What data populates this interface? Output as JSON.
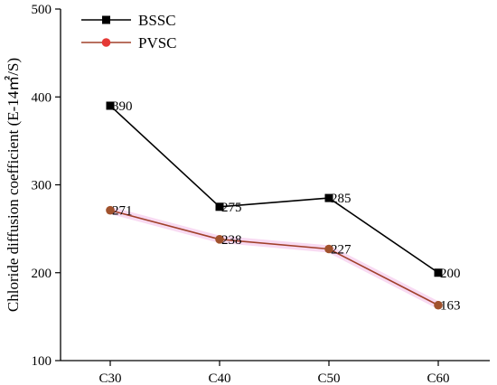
{
  "chart_data": {
    "type": "line",
    "categories": [
      "C30",
      "C40",
      "C50",
      "C60"
    ],
    "ylim": [
      100,
      500
    ],
    "yticks": [
      100,
      200,
      300,
      400,
      500
    ],
    "ylabel": "Chloride diffusion coefficient (E-14㎡/S)",
    "xlabel": "",
    "title": "",
    "grid": false,
    "legend_position": "top-left",
    "series": [
      {
        "name": "BSSC",
        "values": [
          390,
          275,
          285,
          200
        ],
        "color": "#000000",
        "marker": "square",
        "labels": [
          "390",
          "275",
          "285",
          "200"
        ]
      },
      {
        "name": "PVSC",
        "values": [
          271,
          238,
          227,
          163
        ],
        "color": "#a0402a",
        "marker": "circle",
        "marker_color": "#a0522d",
        "glow_color": "#f7d3f0",
        "labels": [
          "271",
          "238",
          "227",
          "163"
        ]
      }
    ]
  }
}
